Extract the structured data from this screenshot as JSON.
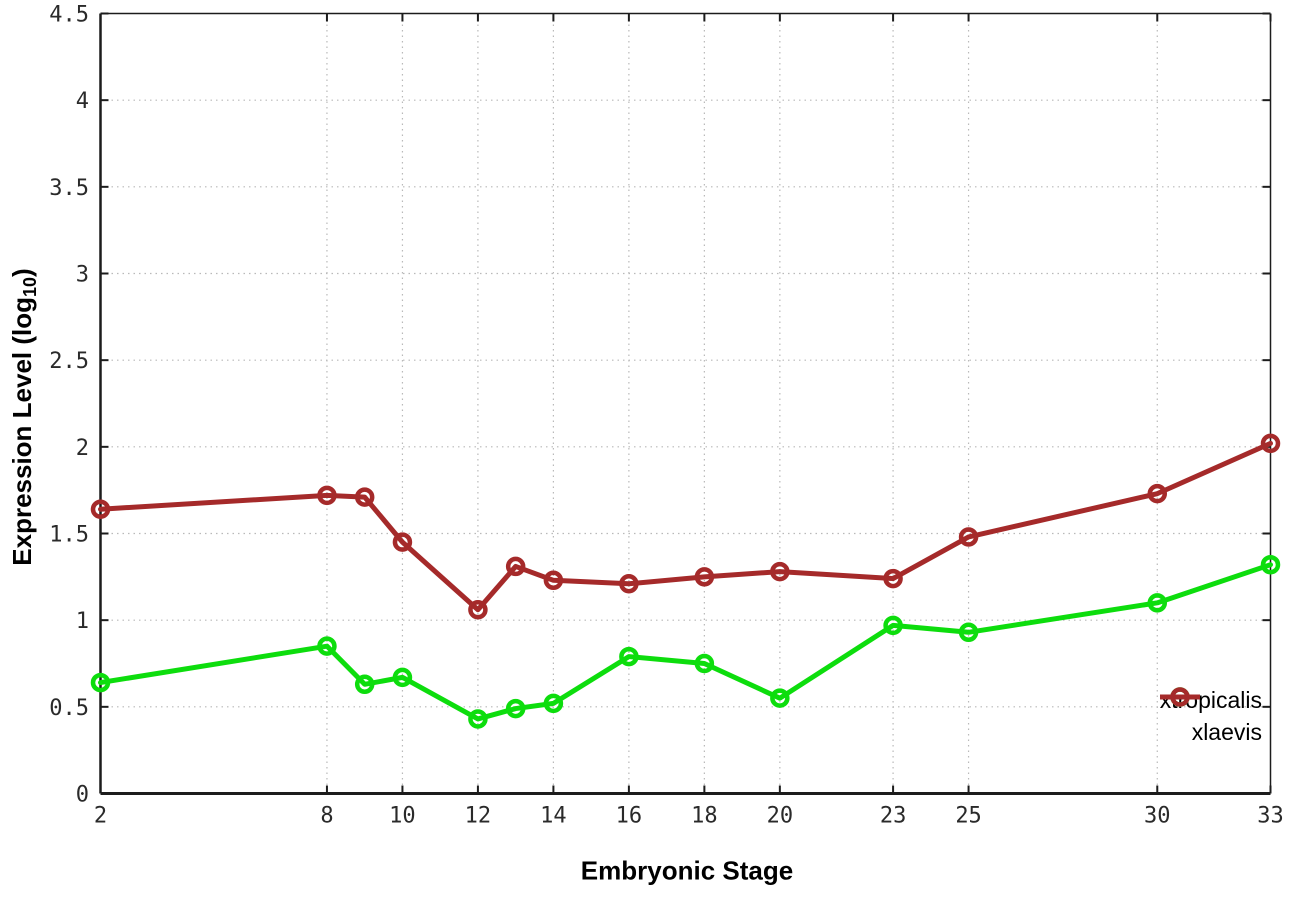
{
  "figure": {
    "xlabel": "Embryonic Stage",
    "ylabel": {
      "pre": "Expression Level (log",
      "sub": "10",
      "post": ")"
    }
  },
  "chart_data": {
    "type": "line",
    "title": "",
    "xlabel": "Embryonic Stage",
    "ylabel_plain": "Expression Level (log10)",
    "x": [
      2,
      8,
      9,
      10,
      12,
      13,
      14,
      16,
      18,
      20,
      23,
      25,
      30,
      33
    ],
    "series": [
      {
        "name": "xtropicalis",
        "color": "#0ddd0d",
        "values": [
          0.64,
          0.85,
          0.63,
          0.67,
          0.43,
          0.49,
          0.52,
          0.79,
          0.75,
          0.55,
          0.97,
          0.93,
          1.1,
          1.32
        ]
      },
      {
        "name": "xlaevis",
        "color": "#a52a2a",
        "values": [
          1.64,
          1.72,
          1.71,
          1.45,
          1.06,
          1.31,
          1.23,
          1.21,
          1.25,
          1.28,
          1.24,
          1.48,
          1.73,
          2.02
        ]
      }
    ],
    "xticks": [
      2,
      8,
      10,
      12,
      14,
      16,
      18,
      20,
      23,
      25,
      30,
      33
    ],
    "yticks": [
      0,
      0.5,
      1,
      1.5,
      2,
      2.5,
      3,
      3.5,
      4,
      4.5
    ],
    "xlim": [
      2,
      33
    ],
    "ylim": [
      0,
      4.5
    ],
    "grid": true,
    "legend_position": "inside-right",
    "marker": "open-circle",
    "axis_color": "#1c1c1c",
    "grid_color": "#b9b9b9"
  }
}
